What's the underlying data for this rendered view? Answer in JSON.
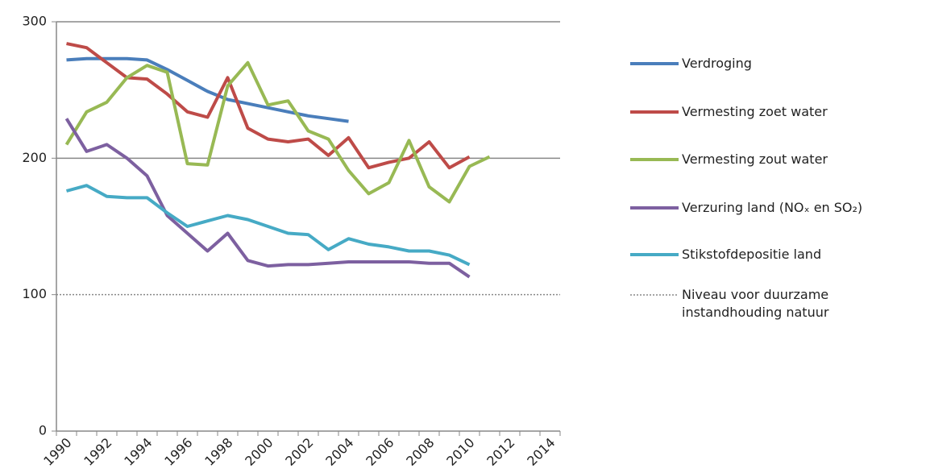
{
  "chart_data": {
    "type": "line",
    "categories": [
      "1990",
      null,
      "1992",
      null,
      "1994",
      null,
      "1996",
      null,
      "1998",
      null,
      "2000",
      null,
      "2002",
      null,
      "2004",
      null,
      "2006",
      null,
      "2008",
      null,
      "2010",
      null,
      "2012",
      null,
      "2014"
    ],
    "ylim": [
      0,
      300
    ],
    "yticks": [
      0,
      100,
      200,
      300
    ],
    "grid": true,
    "legend": "right",
    "series": [
      {
        "name": "Verdroging",
        "color": "#4a7ebb",
        "values": [
          272,
          273,
          273,
          273,
          272,
          265,
          257,
          249,
          243,
          240,
          237,
          234,
          231,
          229,
          227,
          null,
          null,
          null,
          null,
          null,
          null,
          null,
          null,
          null,
          null
        ]
      },
      {
        "name": "Vermesting zoet water",
        "color": "#be4b48",
        "values": [
          284,
          281,
          270,
          259,
          258,
          247,
          234,
          230,
          259,
          222,
          214,
          212,
          214,
          202,
          215,
          193,
          197,
          200,
          212,
          193,
          201,
          null,
          null,
          null,
          null
        ]
      },
      {
        "name": "Vermesting zout water",
        "color": "#98b954",
        "values": [
          210,
          234,
          241,
          259,
          268,
          263,
          196,
          195,
          253,
          270,
          239,
          242,
          220,
          214,
          191,
          174,
          182,
          213,
          179,
          168,
          194,
          201,
          null,
          null,
          null
        ]
      },
      {
        "name": "Verzuring land (NOₓ en SO₂)",
        "color": "#7d60a0",
        "values": [
          229,
          205,
          210,
          200,
          187,
          158,
          145,
          132,
          145,
          125,
          121,
          122,
          122,
          123,
          124,
          124,
          124,
          124,
          123,
          123,
          113,
          null,
          null,
          null,
          null
        ]
      },
      {
        "name": "Stikstofdepositie land",
        "color": "#46aac5",
        "values": [
          176,
          180,
          172,
          171,
          171,
          160,
          150,
          154,
          158,
          155,
          150,
          145,
          144,
          133,
          141,
          137,
          135,
          132,
          132,
          129,
          122,
          null,
          null,
          null,
          null
        ]
      }
    ],
    "reference": {
      "name": "Niveau voor duurzame instandhouding natuur",
      "value": 100,
      "color": "#888888"
    }
  }
}
